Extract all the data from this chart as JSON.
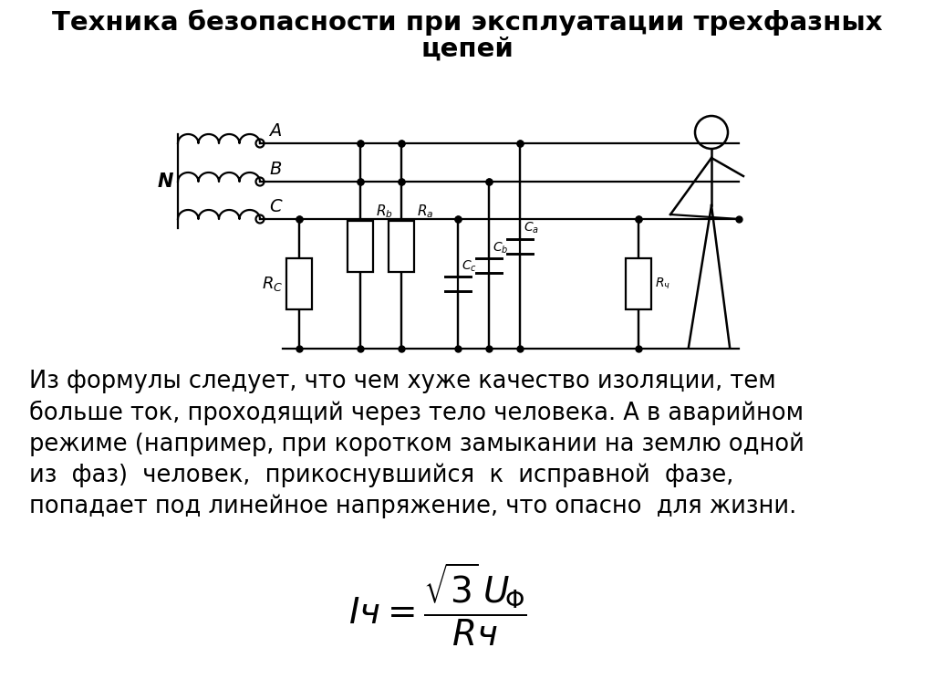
{
  "title_line1": "Техника безопасности при эксплуатации трехфазных",
  "title_line2": "цепей",
  "body_text_lines": [
    "Из формулы следует, что чем хуже качество изоляции, тем",
    "больше ток, проходящий через тело человека. А в аварийном",
    "режиме (например, при коротком замыкании на землю одной",
    "из  фаз)  человек,  прикоснувшийся  к  исправной  фазе,",
    "попадает под линейное напряжение, что опасно  для жизни."
  ],
  "bg_color": "#ffffff",
  "text_color": "#000000",
  "title_fontsize": 21,
  "body_fontsize": 18.5,
  "formula_fontsize": 28,
  "lw": 1.6
}
